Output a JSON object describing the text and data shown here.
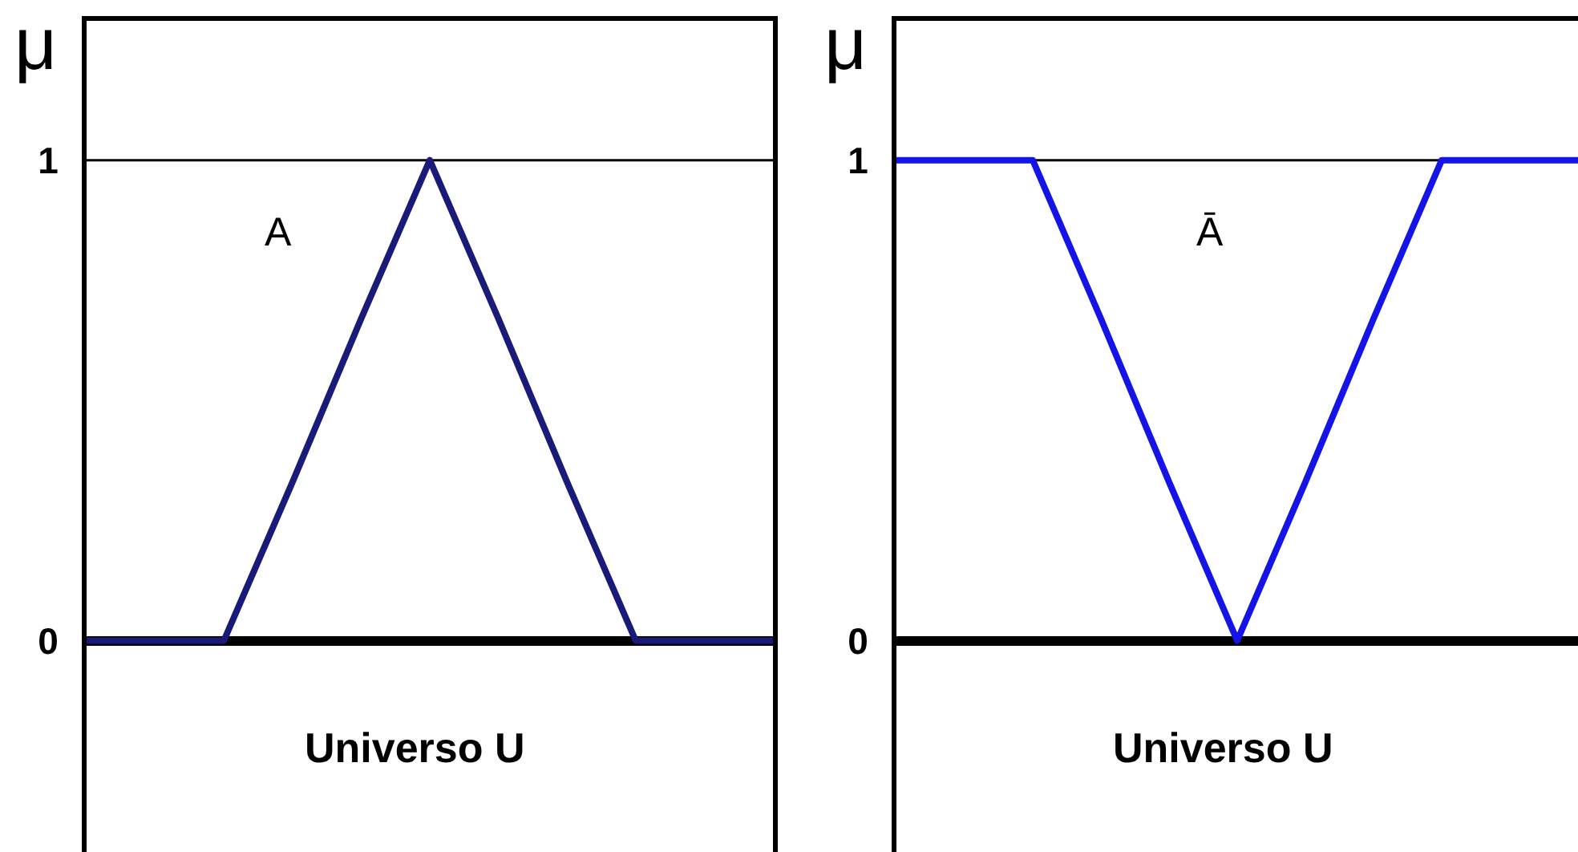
{
  "chart_data": [
    {
      "type": "line",
      "ylabel": "μ",
      "xlabel": "Universo U",
      "categories": [
        null,
        null,
        null,
        null,
        null,
        null,
        null,
        null,
        null,
        null,
        null
      ],
      "series": [
        {
          "name": "A",
          "color": "#1a1a78",
          "values": [
            0,
            0,
            0,
            0.33,
            0.67,
            1,
            0.67,
            0.33,
            0,
            0,
            0
          ]
        }
      ],
      "ylim": [
        -0.44,
        1.29
      ],
      "yticks": [
        0,
        1
      ],
      "tick_labels": "y",
      "ref_lines": [
        {
          "axis": "y",
          "value": 1,
          "color": "#000000"
        }
      ]
    },
    {
      "type": "line",
      "ylabel": "μ",
      "xlabel": "Universo U",
      "categories": [
        null,
        null,
        null,
        null,
        null,
        null,
        null,
        null,
        null,
        null,
        null
      ],
      "series": [
        {
          "name": "Ā",
          "color": "#1414e6",
          "values": [
            1,
            1,
            1,
            0.67,
            0.33,
            0,
            0.33,
            0.67,
            1,
            1,
            1
          ]
        }
      ],
      "ylim": [
        -0.44,
        1.29
      ],
      "yticks": [
        0,
        1
      ],
      "tick_labels": "y",
      "ref_lines": [
        {
          "axis": "y",
          "value": 1,
          "color": "#000000"
        }
      ]
    }
  ]
}
